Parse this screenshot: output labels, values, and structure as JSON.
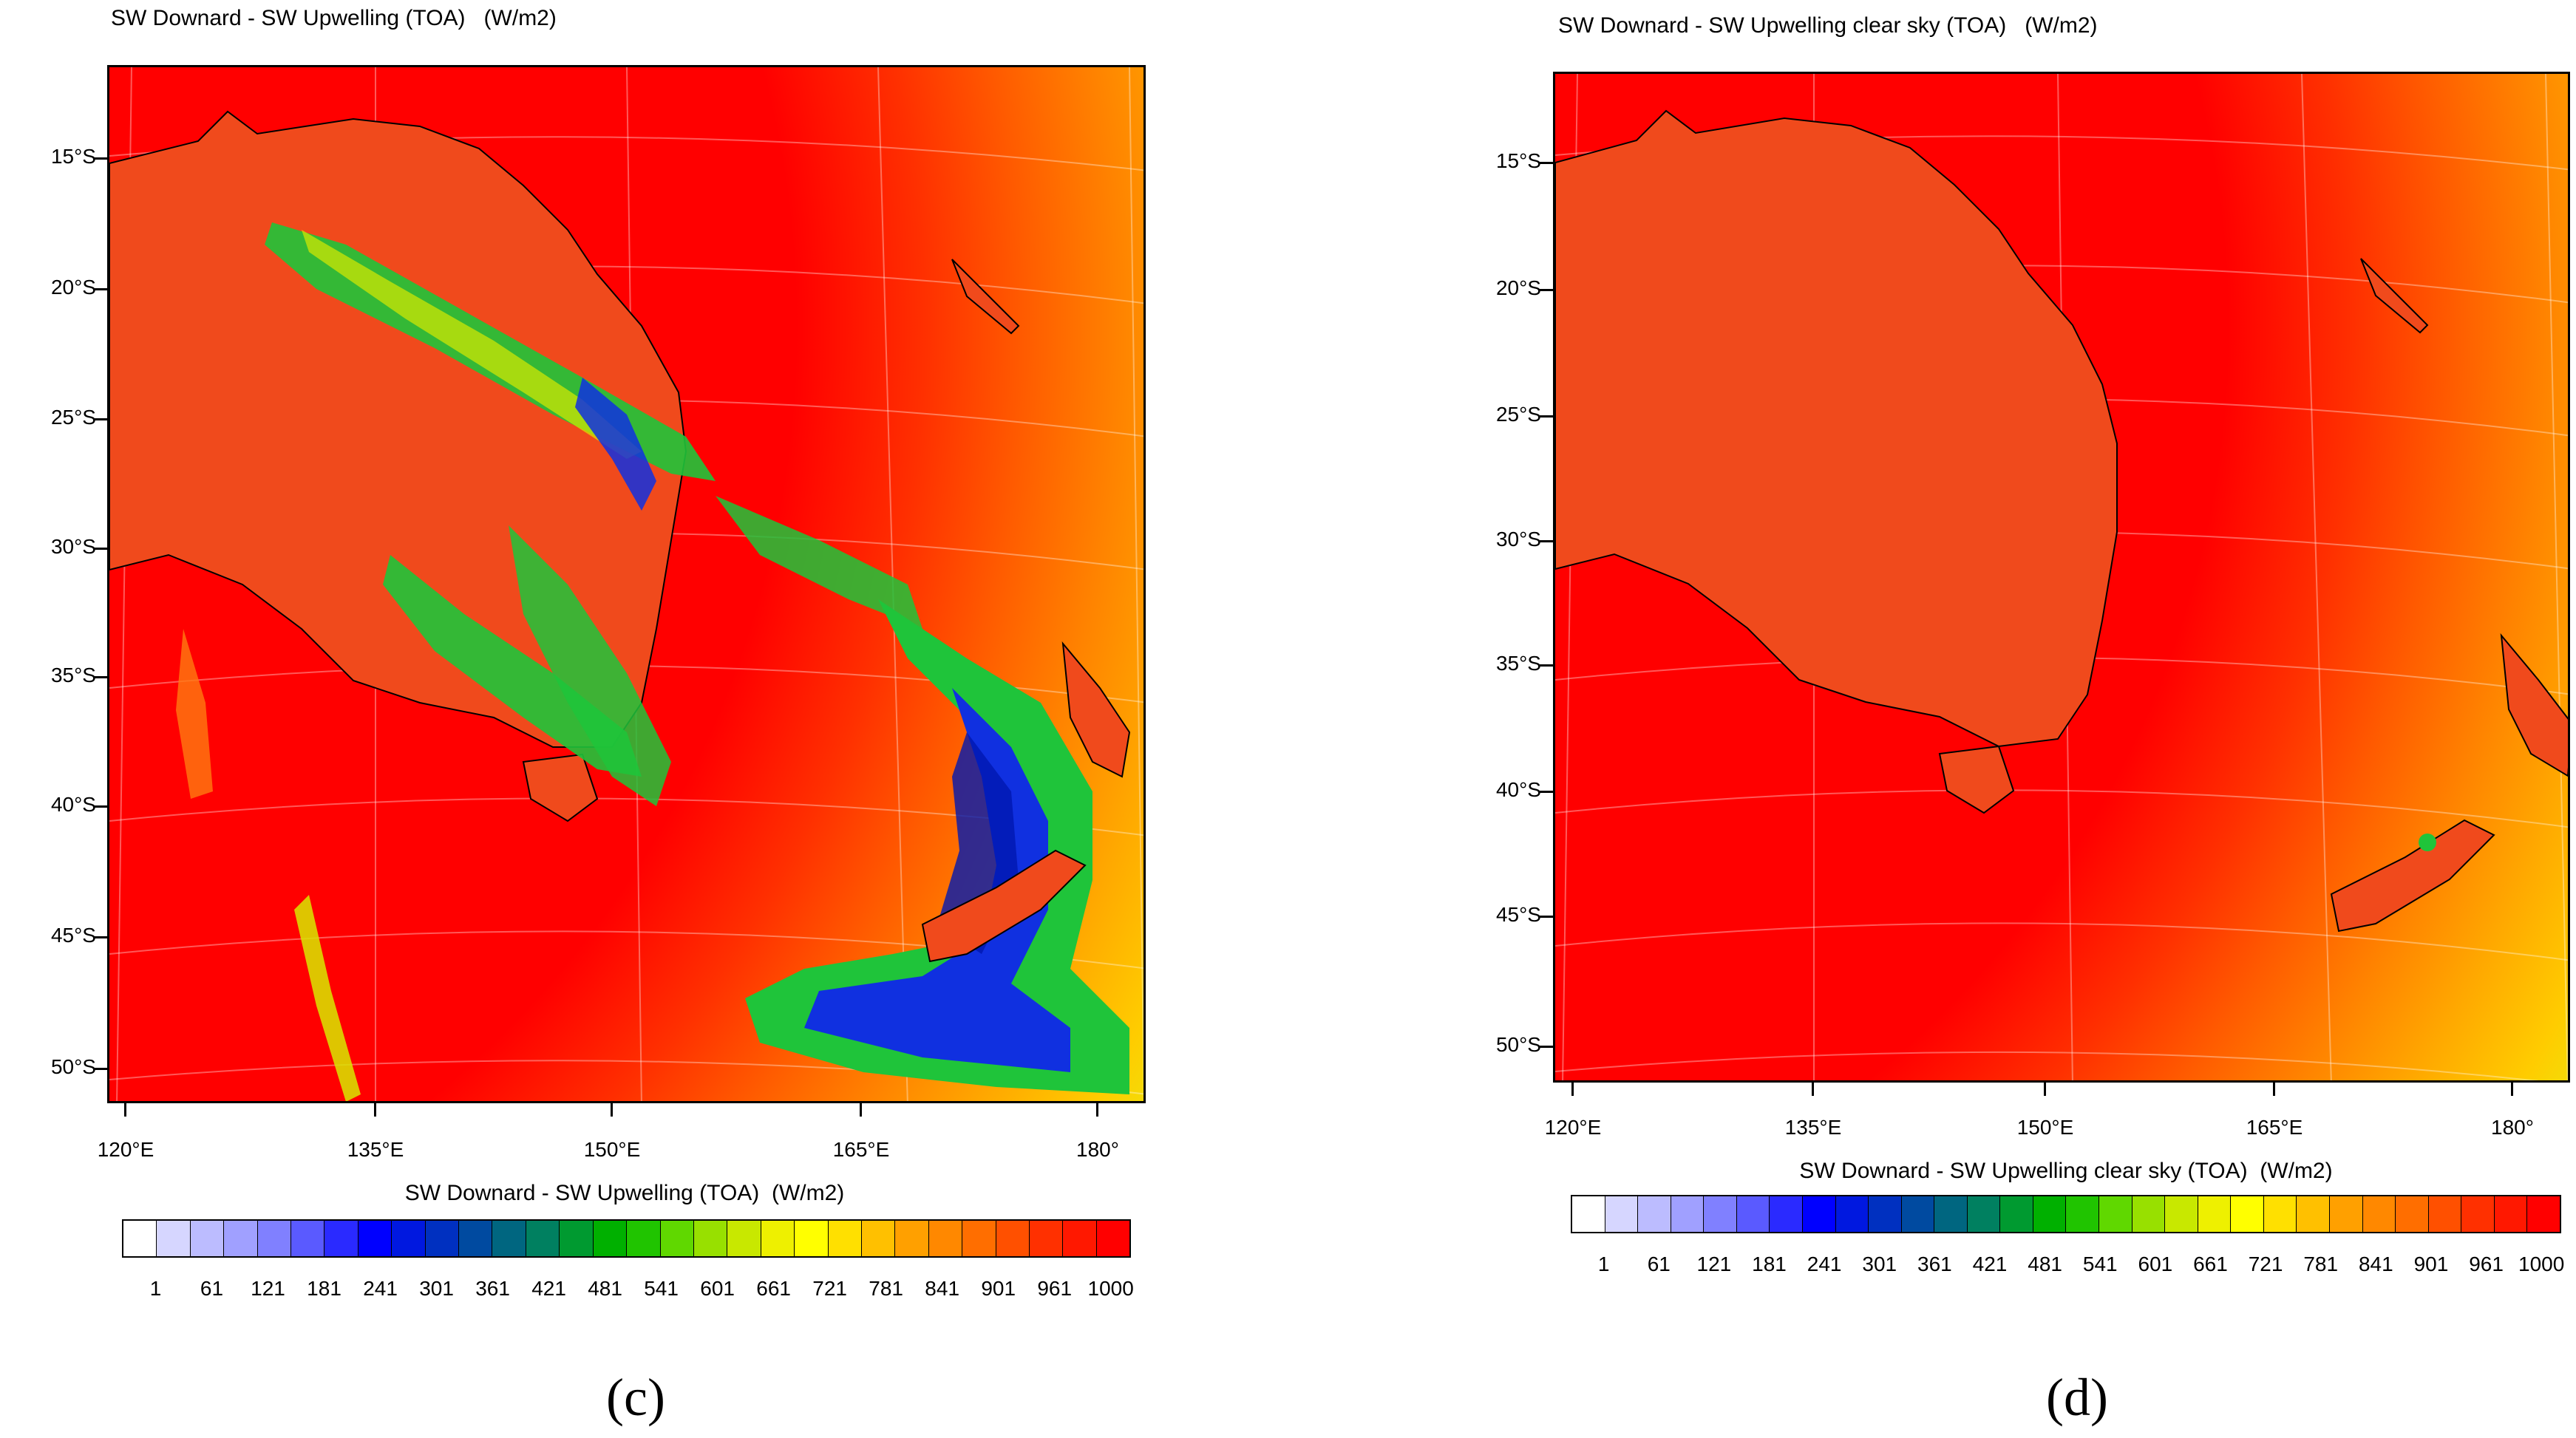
{
  "panels": [
    {
      "id": "c",
      "title": "SW Downard - SW Upwelling (TOA)   (W/m2)",
      "colorbar_title": "SW Downard - SW Upwelling (TOA)  (W/m2)",
      "panel_label": "(c)"
    },
    {
      "id": "d",
      "title": "SW Downard - SW Upwelling clear sky (TOA)   (W/m2)",
      "colorbar_title": "SW Downard - SW Upwelling clear sky (TOA)  (W/m2)",
      "panel_label": "(d)"
    }
  ],
  "lat_ticks": [
    "15°S",
    "20°S",
    "25°S",
    "30°S",
    "35°S",
    "40°S",
    "45°S",
    "50°S"
  ],
  "lon_ticks": [
    "120°E",
    "135°E",
    "150°E",
    "165°E",
    "180°"
  ],
  "colorbar_labels": [
    "1",
    "61",
    "121",
    "181",
    "241",
    "301",
    "361",
    "421",
    "481",
    "541",
    "601",
    "661",
    "721",
    "781",
    "841",
    "901",
    "961",
    "1000"
  ],
  "colorbar_colors": [
    "#ffffff",
    "#d6d6ff",
    "#bcbcff",
    "#a0a0ff",
    "#8080ff",
    "#5a5aff",
    "#2a2aff",
    "#0000ff",
    "#0018e0",
    "#0030c0",
    "#004aa0",
    "#006680",
    "#008060",
    "#009a30",
    "#00b000",
    "#20c400",
    "#60d800",
    "#98e000",
    "#c8e800",
    "#eef000",
    "#ffff00",
    "#ffe000",
    "#ffc000",
    "#ffa000",
    "#ff8800",
    "#ff6e00",
    "#ff5000",
    "#ff3000",
    "#ff1800",
    "#ff0000"
  ],
  "map_colors": {
    "background": "#ff0000",
    "land": "#f04a1c",
    "cloud_green": "#1fc43a",
    "cloud_blue": "#1030e0",
    "cloud_yellow": "#d8e800",
    "cloud_orange": "#ff7a10"
  }
}
